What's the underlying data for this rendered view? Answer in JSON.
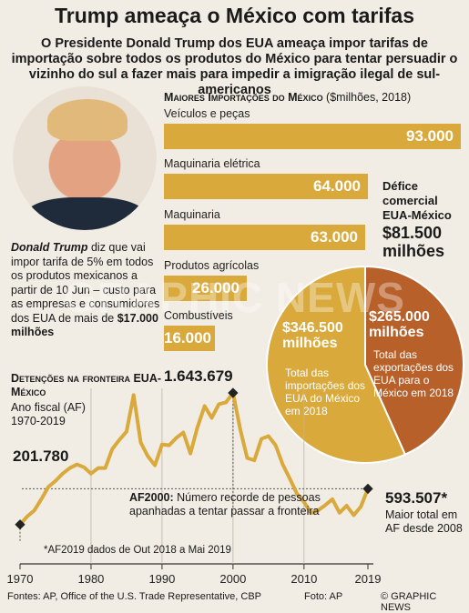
{
  "title": "Trump ameaça o México com tarifas",
  "subtitle": "O Presidente Donald Trump dos EUA ameaça impor tarifas de importação sobre todos os produtos do México para tentar persuadir o vizinho do sul a fazer mais para impedir a imigração ilegal de sul-americanos",
  "quote": {
    "name": "Donald Trump",
    "text_before": " diz que vai impor tarifa de 5% em todos os produtos mexicanos a partir de 10 Jun – custo para as empresas e consumidores dos EUA de mais de ",
    "amount": "$17.000 milhões"
  },
  "imports_chart": {
    "heading_caps": "Maiores Importações do México",
    "heading_unit": " ($milhões, 2018)",
    "categories": [
      "Veículos e peças",
      "Maquinaria elétrica",
      "Maquinaria",
      "Produtos agrícolas",
      "Combustíveis"
    ],
    "values": [
      93000,
      64000,
      63000,
      26000,
      16000
    ],
    "labels": [
      "93.000",
      "64.000",
      "63.000",
      "26.000",
      "16.000"
    ]
  },
  "deficit": {
    "label": "Défice comercial EUA-México",
    "value": "$81.500 milhões",
    "imports_value": "$346.500 milhões",
    "imports_label": "Total das importações dos EUA do México em 2018",
    "exports_value": "$265.000 milhões",
    "exports_label": "Total das exportações dos EUA para o México em 2018",
    "colors": {
      "imports": "#d9a93b",
      "exports": "#b8602a"
    }
  },
  "detentions": {
    "heading": "Detenções na fronteira EUA-México",
    "sub1": "Ano fiscal (AF)",
    "sub2": "1970-2019",
    "first_value": "201.780",
    "peak_value": "1.643.679",
    "last_value": "593.507*",
    "last_note": "Maior total em AF desde 2008",
    "af2000_bold": "AF2000:",
    "af2000_text": " Número recorde de pessoas apanhadas a tentar passar a fronteira",
    "footnote": "*AF2019 dados de Out 2018 a Mai 2019"
  },
  "chart_data": [
    {
      "type": "bar",
      "title": "Maiores Importações do México ($milhões, 2018)",
      "categories": [
        "Veículos e peças",
        "Maquinaria elétrica",
        "Maquinaria",
        "Produtos agrícolas",
        "Combustíveis"
      ],
      "values": [
        93000,
        64000,
        63000,
        26000,
        16000
      ]
    },
    {
      "type": "pie",
      "title": "Défice comercial EUA-México",
      "categories": [
        "Total das importações dos EUA do México em 2018",
        "Total das exportações dos EUA para o México em 2018"
      ],
      "values": [
        346500,
        265000
      ]
    },
    {
      "type": "line",
      "title": "Detenções na fronteira EUA-México",
      "x": [
        1970,
        1971,
        1972,
        1973,
        1974,
        1975,
        1976,
        1977,
        1978,
        1979,
        1980,
        1981,
        1982,
        1983,
        1984,
        1985,
        1986,
        1987,
        1988,
        1989,
        1990,
        1991,
        1992,
        1993,
        1994,
        1995,
        1996,
        1997,
        1998,
        1999,
        2000,
        2001,
        2002,
        2003,
        2004,
        2005,
        2006,
        2007,
        2008,
        2009,
        2010,
        2011,
        2012,
        2013,
        2014,
        2015,
        2016,
        2017,
        2018,
        2019
      ],
      "y": [
        201780,
        290000,
        355000,
        480000,
        615000,
        680000,
        760000,
        820000,
        860000,
        830000,
        760000,
        820000,
        820000,
        1030000,
        1130000,
        1220000,
        1620000,
        1100000,
        950000,
        850000,
        1080000,
        1070000,
        1150000,
        1210000,
        980000,
        1270000,
        1500000,
        1370000,
        1520000,
        1540000,
        1643679,
        1250000,
        930000,
        905000,
        1140000,
        1170000,
        1070000,
        860000,
        705000,
        540000,
        447000,
        328000,
        357000,
        415000,
        479000,
        331000,
        408000,
        304000,
        397000,
        593507
      ],
      "xticks": [
        "1970",
        "1980",
        "1990",
        "2000",
        "2010",
        "2019"
      ],
      "xlim": [
        1970,
        2019
      ],
      "ylim": [
        0,
        1700000
      ]
    }
  ],
  "footer": {
    "sources": "Fontes: AP, Office of the U.S. Trade Representative, CBP",
    "photo": "Foto: AP",
    "credit": "© GRAPHIC NEWS"
  },
  "watermark": "GRAPHIC NEWS"
}
